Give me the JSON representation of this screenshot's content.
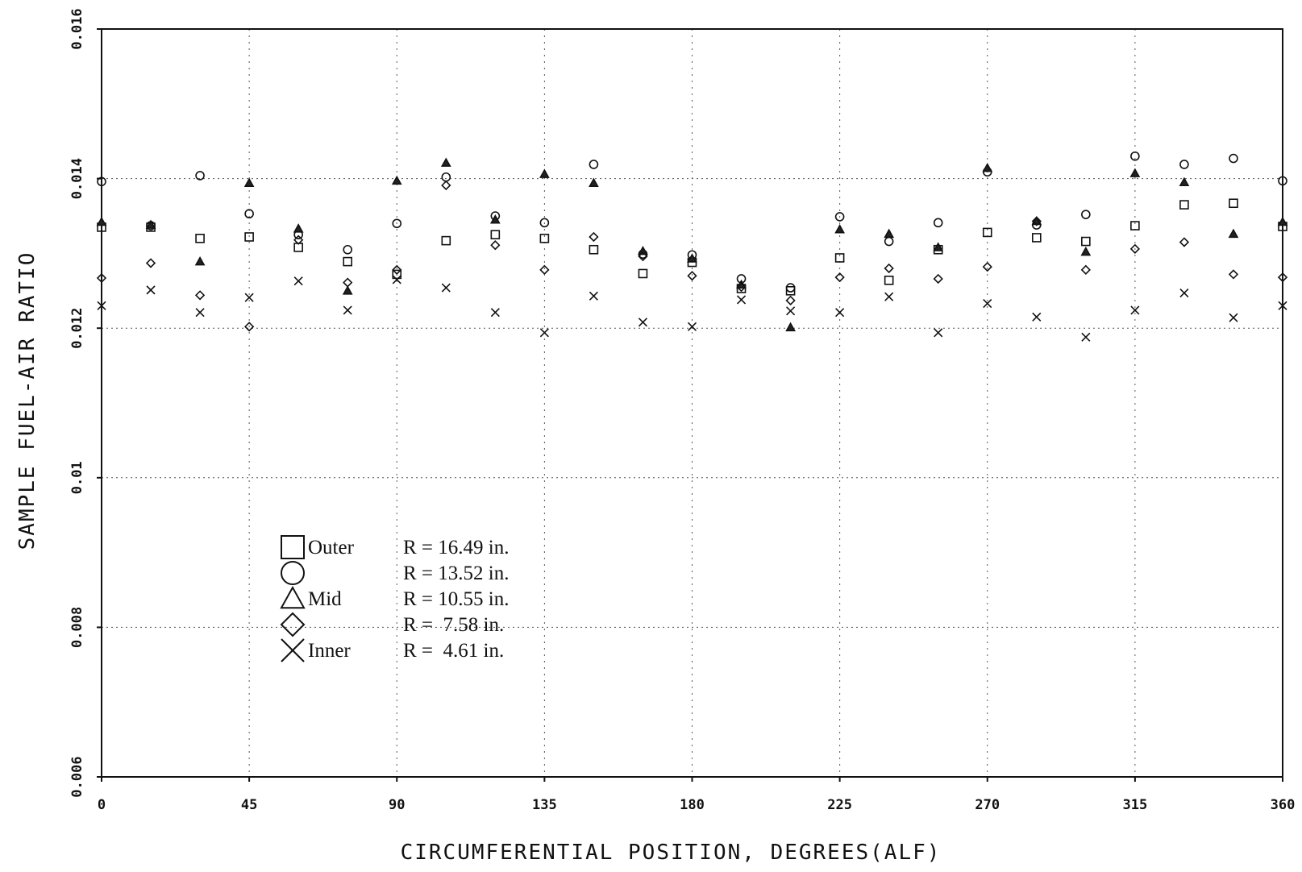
{
  "chart_data": {
    "type": "scatter",
    "title": "",
    "xlabel": "CIRCUMFERENTIAL POSITION, DEGREES(ALF)",
    "ylabel": "SAMPLE FUEL-AIR RATIO",
    "xlim": [
      0,
      360
    ],
    "ylim": [
      0.006,
      0.016
    ],
    "x_ticks": [
      0,
      45,
      90,
      135,
      180,
      225,
      270,
      315,
      360
    ],
    "x_tick_labels": [
      "0",
      "45",
      "90",
      "135",
      "180",
      "225",
      "270",
      "315",
      "360"
    ],
    "y_ticks": [
      0.006,
      0.008,
      0.01,
      0.012,
      0.014,
      0.016
    ],
    "y_tick_labels": [
      "0.006",
      "0.008",
      "0.01",
      "0.012",
      "0.014",
      "0.016"
    ],
    "grid": true,
    "legend_position": "lower-left",
    "series": [
      {
        "name": "Outer",
        "radius_label": "R = 16.49 in.",
        "marker": "square",
        "x": [
          0,
          15,
          30,
          45,
          60,
          75,
          90,
          105,
          120,
          135,
          150,
          165,
          180,
          195,
          210,
          225,
          240,
          255,
          270,
          285,
          300,
          315,
          330,
          345,
          360
        ],
        "y": [
          0.01335,
          0.01335,
          0.0132,
          0.01322,
          0.01308,
          0.01289,
          0.01272,
          0.01317,
          0.01325,
          0.0132,
          0.01305,
          0.01273,
          0.01288,
          0.01253,
          0.0125,
          0.01294,
          0.01264,
          0.01305,
          0.01328,
          0.01321,
          0.01316,
          0.01337,
          0.01365,
          0.01367,
          0.01336
        ]
      },
      {
        "name": "",
        "radius_label": "R = 13.52 in.",
        "marker": "circle",
        "x": [
          0,
          15,
          30,
          45,
          60,
          75,
          90,
          105,
          120,
          135,
          150,
          165,
          180,
          195,
          210,
          225,
          240,
          255,
          270,
          285,
          300,
          315,
          330,
          345,
          360
        ],
        "y": [
          0.01396,
          0.01337,
          0.01404,
          0.01353,
          0.01325,
          0.01305,
          0.0134,
          0.01402,
          0.0135,
          0.01341,
          0.01419,
          0.01299,
          0.01298,
          0.01266,
          0.01254,
          0.01349,
          0.01316,
          0.01341,
          0.01409,
          0.01338,
          0.01352,
          0.0143,
          0.01419,
          0.01427,
          0.01397
        ]
      },
      {
        "name": "Mid",
        "radius_label": "R = 10.55 in.",
        "marker": "triangle",
        "x": [
          0,
          15,
          30,
          45,
          60,
          75,
          90,
          105,
          120,
          135,
          150,
          165,
          180,
          195,
          210,
          225,
          240,
          255,
          270,
          285,
          300,
          315,
          330,
          345,
          360
        ],
        "y": [
          0.01342,
          0.01338,
          0.01289,
          0.01394,
          0.01333,
          0.0125,
          0.01397,
          0.01421,
          0.01345,
          0.01406,
          0.01394,
          0.01303,
          0.01293,
          0.01258,
          0.01201,
          0.01332,
          0.01326,
          0.01308,
          0.01414,
          0.01343,
          0.01302,
          0.01407,
          0.01395,
          0.01326,
          0.01342
        ]
      },
      {
        "name": "",
        "radius_label": "R =  7.58 in.",
        "marker": "diamond",
        "x": [
          0,
          15,
          30,
          45,
          60,
          75,
          90,
          105,
          120,
          135,
          150,
          165,
          180,
          195,
          210,
          225,
          240,
          255,
          270,
          285,
          300,
          315,
          330,
          345,
          360
        ],
        "y": [
          0.01267,
          0.01287,
          0.01244,
          0.01202,
          0.01318,
          0.01261,
          0.01278,
          0.01391,
          0.01311,
          0.01278,
          0.01322,
          0.01296,
          0.0127,
          0.01255,
          0.01237,
          0.01268,
          0.0128,
          0.01266,
          0.01282,
          0.01343,
          0.01278,
          0.01306,
          0.01315,
          0.01272,
          0.01268
        ]
      },
      {
        "name": "Inner",
        "radius_label": "R =  4.61 in.",
        "marker": "x",
        "x": [
          0,
          15,
          30,
          45,
          60,
          75,
          90,
          105,
          120,
          135,
          150,
          165,
          180,
          195,
          210,
          225,
          240,
          255,
          270,
          285,
          300,
          315,
          330,
          345,
          360
        ],
        "y": [
          0.0123,
          0.01251,
          0.01221,
          0.01241,
          0.01263,
          0.01224,
          0.01265,
          0.01254,
          0.01221,
          0.01194,
          0.01243,
          0.01208,
          0.01202,
          0.01238,
          0.01223,
          0.01221,
          0.01242,
          0.01194,
          0.01233,
          0.01215,
          0.01188,
          0.01224,
          0.01247,
          0.01214,
          0.0123
        ]
      }
    ]
  }
}
